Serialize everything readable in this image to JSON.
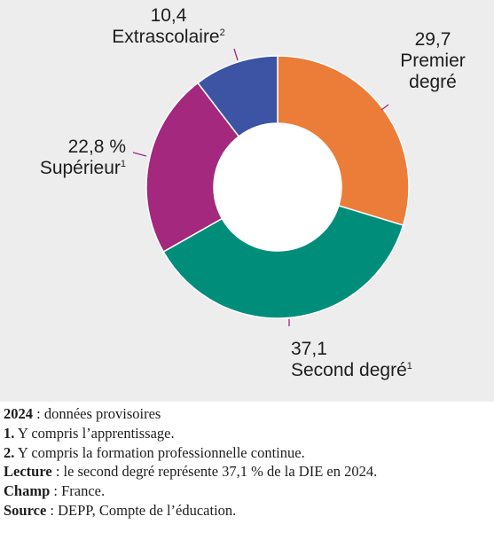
{
  "chart_data": {
    "type": "pie",
    "donut": true,
    "unit": "%",
    "slices": [
      {
        "value": 29.7,
        "value_text": "29,7",
        "label_lines": [
          "Premier",
          "degré"
        ],
        "note": "",
        "color": "#ec7d38"
      },
      {
        "value": 37.1,
        "value_text": "37,1",
        "label_lines": [
          "Second degré"
        ],
        "note": "1",
        "color": "#008e7b"
      },
      {
        "value": 22.8,
        "value_text": "22,8 %",
        "label_lines": [
          "Supérieur"
        ],
        "note": "1",
        "color": "#a3287e"
      },
      {
        "value": 10.4,
        "value_text": "10,4",
        "label_lines": [
          "Extrascolaire"
        ],
        "note": "2",
        "color": "#3c54a3"
      }
    ],
    "leader_color": "#a3287e",
    "background": "#ededed"
  },
  "notes": [
    {
      "bold": "2024",
      "text": " : données provisoires"
    },
    {
      "bold": "1.",
      "text": " Y compris l’apprentissage."
    },
    {
      "bold": "2.",
      "text": " Y compris la formation professionnelle continue."
    },
    {
      "bold": "Lecture",
      "text": " : le second degré représente 37,1 % de la DIE en 2024."
    },
    {
      "bold": "Champ",
      "text": " : France."
    },
    {
      "bold": "Source",
      "text": " : DEPP, Compte de l’éducation."
    }
  ]
}
